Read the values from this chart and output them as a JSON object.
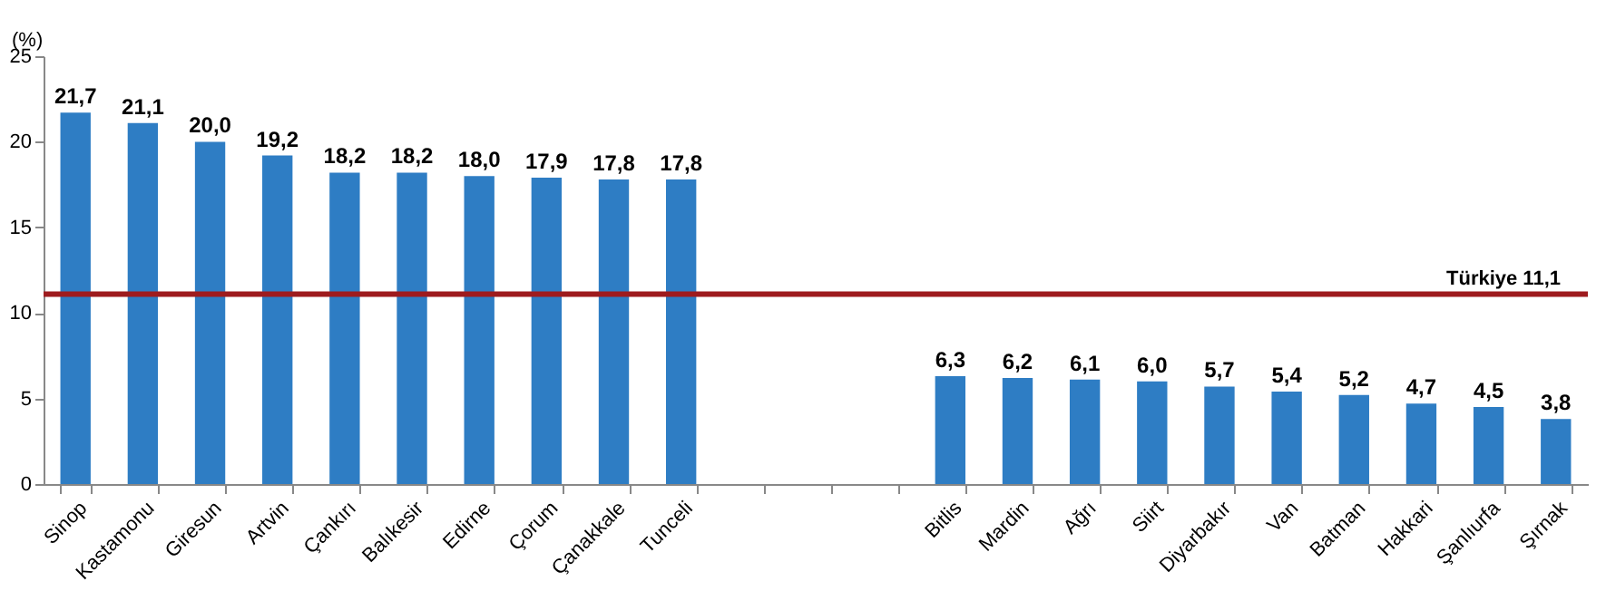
{
  "chart_data": {
    "type": "bar",
    "ylabel": "(%)",
    "categories": [
      "Sinop",
      "Kastamonu",
      "Giresun",
      "Artvin",
      "Çankırı",
      "Balıkesir",
      "Edirne",
      "Çorum",
      "Çanakkale",
      "Tunceli",
      null,
      null,
      null,
      "Bitlis",
      "Mardin",
      "Ağrı",
      "Siirt",
      "Diyarbakır",
      "Van",
      "Batman",
      "Hakkari",
      "Şanlıurfa",
      "Şırnak"
    ],
    "values": [
      21.7,
      21.1,
      20.0,
      19.2,
      18.2,
      18.2,
      18.0,
      17.9,
      17.8,
      17.8,
      null,
      null,
      null,
      6.3,
      6.2,
      6.1,
      6.0,
      5.7,
      5.4,
      5.2,
      4.7,
      4.5,
      3.8
    ],
    "value_labels": [
      "21,7",
      "21,1",
      "20,0",
      "19,2",
      "18,2",
      "18,2",
      "18,0",
      "17,9",
      "17,8",
      "17,8",
      null,
      null,
      null,
      "6,3",
      "6,2",
      "6,1",
      "6,0",
      "5,7",
      "5,4",
      "5,2",
      "4,7",
      "4,5",
      "3,8"
    ],
    "color": "#2e7dc4",
    "ylim": [
      0,
      25
    ],
    "yticks": [
      0,
      5,
      10,
      15,
      20,
      25
    ],
    "ref_lines": [
      {
        "axis": "y",
        "value": 11.1,
        "label": "Türkiye  11,1",
        "color": "#9e1b1e"
      }
    ]
  }
}
